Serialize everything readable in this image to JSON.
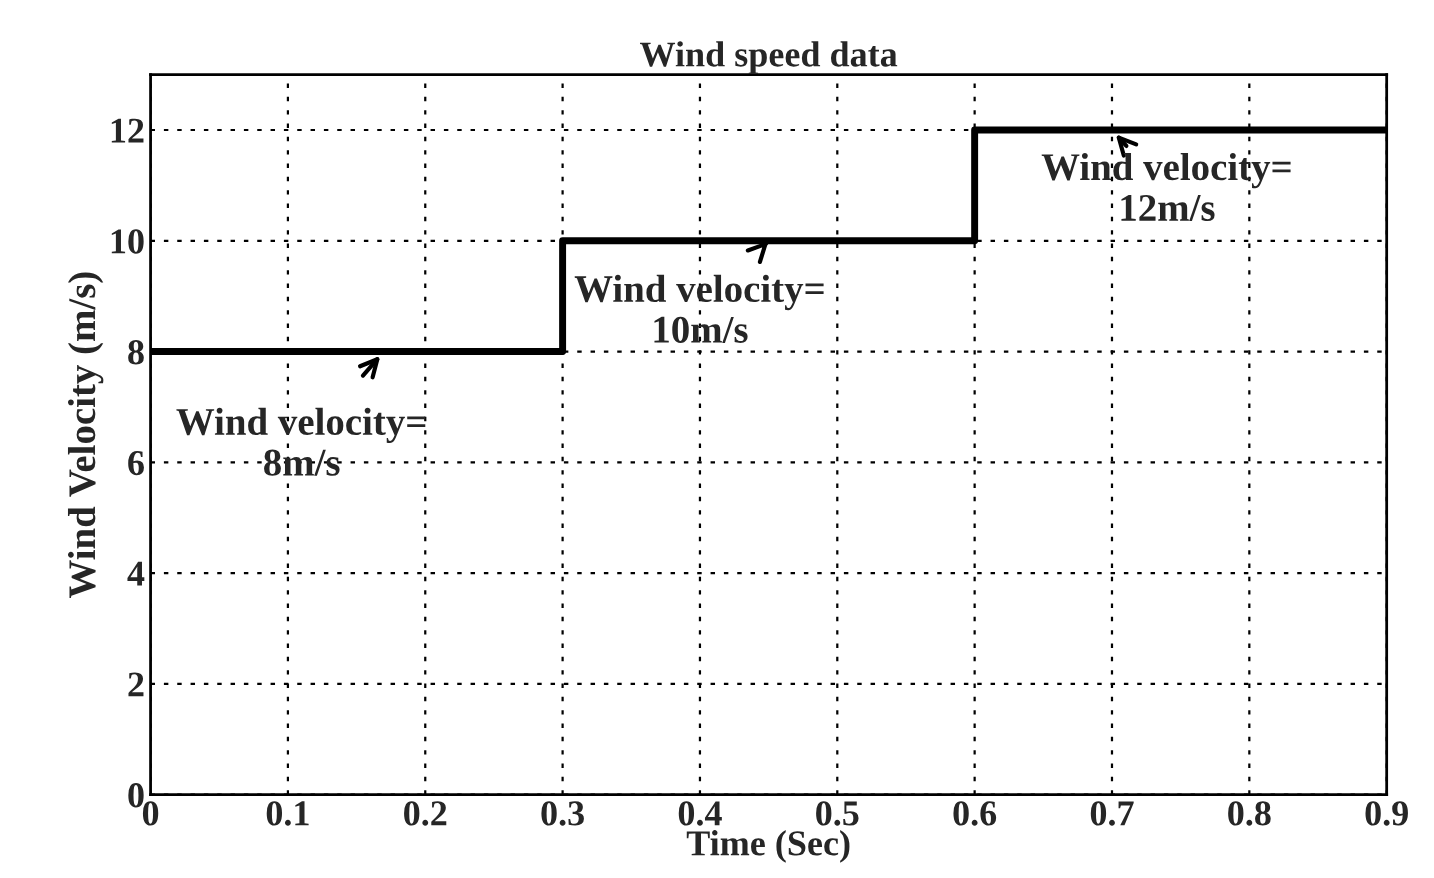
{
  "chart_data": {
    "type": "step",
    "title": "Wind speed data",
    "xlabel": "Time (Sec)",
    "ylabel": "Wind Velocity (m/s)",
    "x": [
      0,
      0.3,
      0.6,
      0.9
    ],
    "series": [
      {
        "color": "#000000",
        "values": [
          8,
          10,
          12,
          12
        ]
      }
    ],
    "xlim": [
      0,
      0.9
    ],
    "xticks": [
      0,
      0.1,
      0.2,
      0.3,
      0.4,
      0.5,
      0.6,
      0.7,
      0.8,
      0.9
    ],
    "ylim": [
      0,
      13
    ],
    "yticks": [
      0,
      2,
      4,
      6,
      8,
      10,
      12
    ],
    "grid": true,
    "line_style": "solid",
    "annotations": [
      {
        "text": "Wind velocity=\n8m/s",
        "x": 0.17,
        "y": 8
      },
      {
        "text": "Wind velocity=\n10m/s",
        "x": 0.45,
        "y": 10
      },
      {
        "text": "Wind velocity=\n12m/s",
        "x": 0.7,
        "y": 12
      }
    ]
  }
}
